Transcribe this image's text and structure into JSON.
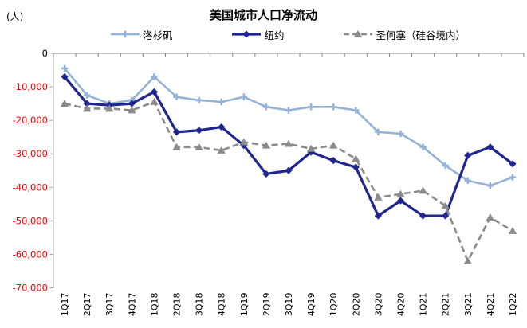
{
  "title": "美国城市人口净流动",
  "unit_label": "(人)",
  "chart_data": {
    "type": "line",
    "categories": [
      "1Q17",
      "2Q17",
      "3Q17",
      "4Q17",
      "1Q18",
      "2Q18",
      "3Q18",
      "4Q18",
      "1Q19",
      "2Q19",
      "3Q19",
      "4Q19",
      "1Q20",
      "2Q20",
      "3Q20",
      "4Q20",
      "1Q21",
      "2Q21",
      "3Q21",
      "4Q21",
      "1Q22"
    ],
    "series": [
      {
        "id": "los-angeles",
        "name": "洛杉矶",
        "color": "#95B3D7",
        "marker": "plus",
        "dashed": false,
        "line_width": 2.6,
        "values": [
          -4500,
          -12500,
          -15000,
          -14000,
          -7000,
          -13000,
          -14000,
          -14500,
          -13000,
          -16000,
          -17000,
          -16000,
          -16000,
          -17000,
          -23500,
          -24000,
          -28000,
          -33500,
          -38000,
          -39500,
          -37000
        ]
      },
      {
        "id": "new-york",
        "name": "纽约",
        "color": "#1F2690",
        "marker": "diamond",
        "dashed": false,
        "line_width": 3.2,
        "values": [
          -7000,
          -15000,
          -15500,
          -15000,
          -11500,
          -23500,
          -23000,
          -22000,
          -27500,
          -36000,
          -35000,
          -29500,
          -32000,
          -34000,
          -48500,
          -44000,
          -48500,
          -48500,
          -30500,
          -28000,
          -33000
        ]
      },
      {
        "id": "san-jose",
        "name": "圣何塞（硅谷境内）",
        "color": "#8C8C8C",
        "marker": "triangle",
        "dashed": true,
        "line_width": 2.6,
        "values": [
          -15000,
          -16500,
          -16500,
          -17000,
          -14500,
          -28000,
          -28000,
          -29000,
          -26500,
          -27500,
          -27000,
          -28500,
          -27500,
          -31500,
          -43000,
          -42000,
          -41000,
          -45500,
          -62000,
          -49000,
          -53000
        ]
      }
    ],
    "ylim": [
      -70000,
      0
    ],
    "y_ticks": [
      0,
      -10000,
      -20000,
      -30000,
      -40000,
      -50000,
      -60000,
      -70000
    ],
    "y_tick_labels": [
      "0",
      "-10,000",
      "-20,000",
      "-30,000",
      "-40,000",
      "-50,000",
      "-60,000",
      "-70,000"
    ],
    "grid": false,
    "legend_position": "top",
    "styles": {
      "zero_label_color": "#000000",
      "negative_label_color": "#FF0000",
      "axis_color": "#808080",
      "value_axis_color": "#A6A6A6"
    }
  }
}
